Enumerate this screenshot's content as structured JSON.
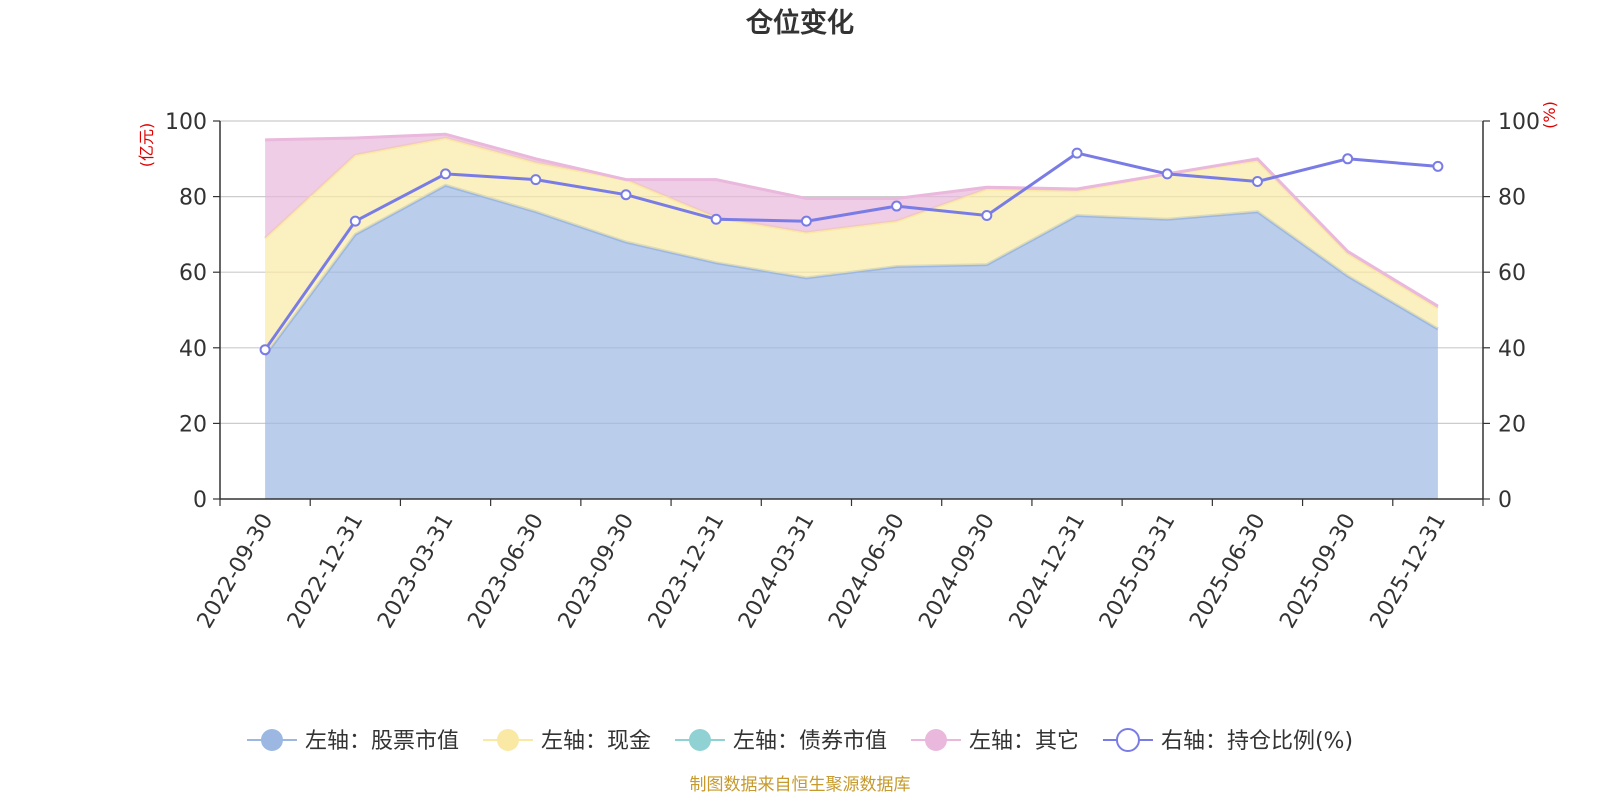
{
  "chart_data": {
    "type": "area",
    "title": "仓位变化",
    "categories": [
      "2022-09-30",
      "2022-12-31",
      "2023-03-31",
      "2023-06-30",
      "2023-09-30",
      "2023-12-31",
      "2024-03-31",
      "2024-06-30",
      "2024-09-30",
      "2024-12-31",
      "2025-03-31",
      "2025-06-30",
      "2025-09-30",
      "2025-12-31"
    ],
    "left_axis": {
      "unit": "(亿元)",
      "ylim": [
        0,
        100
      ],
      "ticks": [
        "0",
        "20",
        "40",
        "60",
        "80",
        "100"
      ]
    },
    "right_axis": {
      "unit": "(%)",
      "ylim": [
        0,
        100
      ],
      "ticks": [
        "0",
        "20",
        "40",
        "60",
        "80",
        "100"
      ]
    },
    "series": [
      {
        "name": "左轴：股票市值",
        "axis": "left",
        "stacked": true,
        "color": "#9cb8e2",
        "values": [
          38,
          70,
          83,
          76,
          68,
          62.5,
          58.5,
          61.5,
          62,
          75,
          74,
          76,
          59,
          45
        ]
      },
      {
        "name": "左轴：现金",
        "axis": "left",
        "stacked": true,
        "color": "#fae9a5",
        "values": [
          31,
          21,
          12.5,
          13,
          16.5,
          12,
          12,
          12,
          20,
          6.5,
          12,
          13.5,
          6,
          5.5
        ]
      },
      {
        "name": "左轴：债券市值",
        "axis": "left",
        "stacked": true,
        "color": "#90d2d3",
        "values": [
          0,
          0,
          0,
          0,
          0,
          0,
          0,
          0,
          0,
          0,
          0,
          0,
          0,
          0
        ]
      },
      {
        "name": "左轴：其它",
        "axis": "left",
        "stacked": true,
        "color": "#e9b8dc",
        "values": [
          26,
          4.5,
          1,
          1,
          0,
          10,
          9,
          6,
          0.5,
          0.5,
          0,
          0.5,
          0.5,
          0.5
        ]
      },
      {
        "name": "右轴：持仓比例(%)",
        "axis": "right",
        "type": "line",
        "color": "#7a7ce6",
        "values": [
          39.5,
          73.5,
          86,
          84.5,
          80.5,
          74,
          73.5,
          77.5,
          75,
          91.5,
          86,
          84,
          90,
          88
        ]
      }
    ],
    "legend_position": "bottom",
    "grid": true
  },
  "footer": {
    "source": "制图数据来自恒生聚源数据库"
  }
}
